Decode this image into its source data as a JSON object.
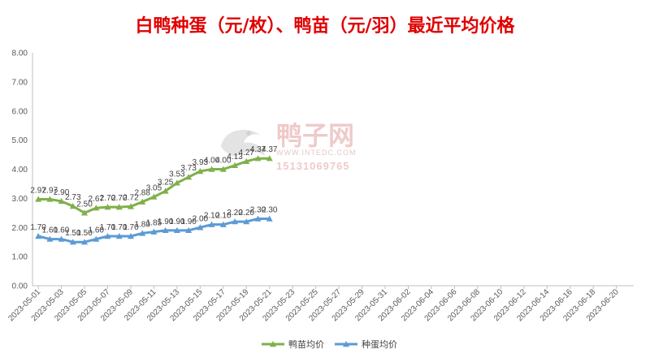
{
  "chart_data": {
    "type": "line",
    "title": "白鸭种蛋（元/枚）、鸭苗（元/羽）最近平均价格",
    "title_color": "#e00000",
    "ylim": [
      0,
      8
    ],
    "yticks": [
      "0.00",
      "1.00",
      "2.00",
      "3.00",
      "4.00",
      "5.00",
      "6.00",
      "7.00",
      "8.00"
    ],
    "xticks": [
      "2023-05-01",
      "2023-05-03",
      "2023-05-05",
      "2023-05-07",
      "2023-05-09",
      "2023-05-11",
      "2023-05-13",
      "2023-05-15",
      "2023-05-17",
      "2023-05-19",
      "2023-05-21",
      "2023-05-23",
      "2023-05-25",
      "2023-05-27",
      "2023-05-29",
      "2023-05-31",
      "2023-06-02",
      "2023-06-04",
      "2023-06-06",
      "2023-06-08",
      "2023-06-10",
      "2023-06-12",
      "2023-06-14",
      "2023-06-16",
      "2023-06-18",
      "2023-06-20"
    ],
    "x_range_days": 52,
    "grid": false,
    "legend_position": "bottom",
    "series": [
      {
        "name": "鸭苗均价",
        "color": "#7fb04a",
        "marker": "triangle",
        "values": [
          2.97,
          2.97,
          2.9,
          2.73,
          2.5,
          2.67,
          2.7,
          2.7,
          2.72,
          2.88,
          3.05,
          3.25,
          3.53,
          3.73,
          3.93,
          4.0,
          4.0,
          4.13,
          4.27,
          4.37,
          4.37
        ],
        "labels": [
          "2.97",
          "2.97",
          "2.90",
          "2.73",
          "2.50",
          "2.67",
          "2.70",
          "2.70",
          "2.72",
          "2.88",
          "3.05",
          "3.25",
          "3.53",
          "3.73",
          "3.93",
          "4.00",
          "4.00",
          "4.13",
          "4.27",
          "4.37",
          "4.37"
        ]
      },
      {
        "name": "种蛋均价",
        "color": "#5b9bd5",
        "marker": "triangle",
        "values": [
          1.7,
          1.6,
          1.6,
          1.5,
          1.5,
          1.6,
          1.7,
          1.7,
          1.7,
          1.8,
          1.85,
          1.9,
          1.9,
          1.9,
          2.0,
          2.1,
          2.1,
          2.2,
          2.2,
          2.3,
          2.3
        ],
        "labels": [
          "1.70",
          "1.60",
          "1.60",
          "1.50",
          "1.50",
          "1.60",
          "1.70",
          "1.70",
          "1.70",
          "1.80",
          "1.85",
          "1.90",
          "1.90",
          "1.90",
          "2.00",
          "2.10",
          "2.10",
          "2.20",
          "2.20",
          "2.30",
          "2.30"
        ]
      }
    ]
  },
  "watermark": {
    "logo": "鸭子网",
    "url": "WWW.INTEDC.COM",
    "phone": "15131069765"
  }
}
